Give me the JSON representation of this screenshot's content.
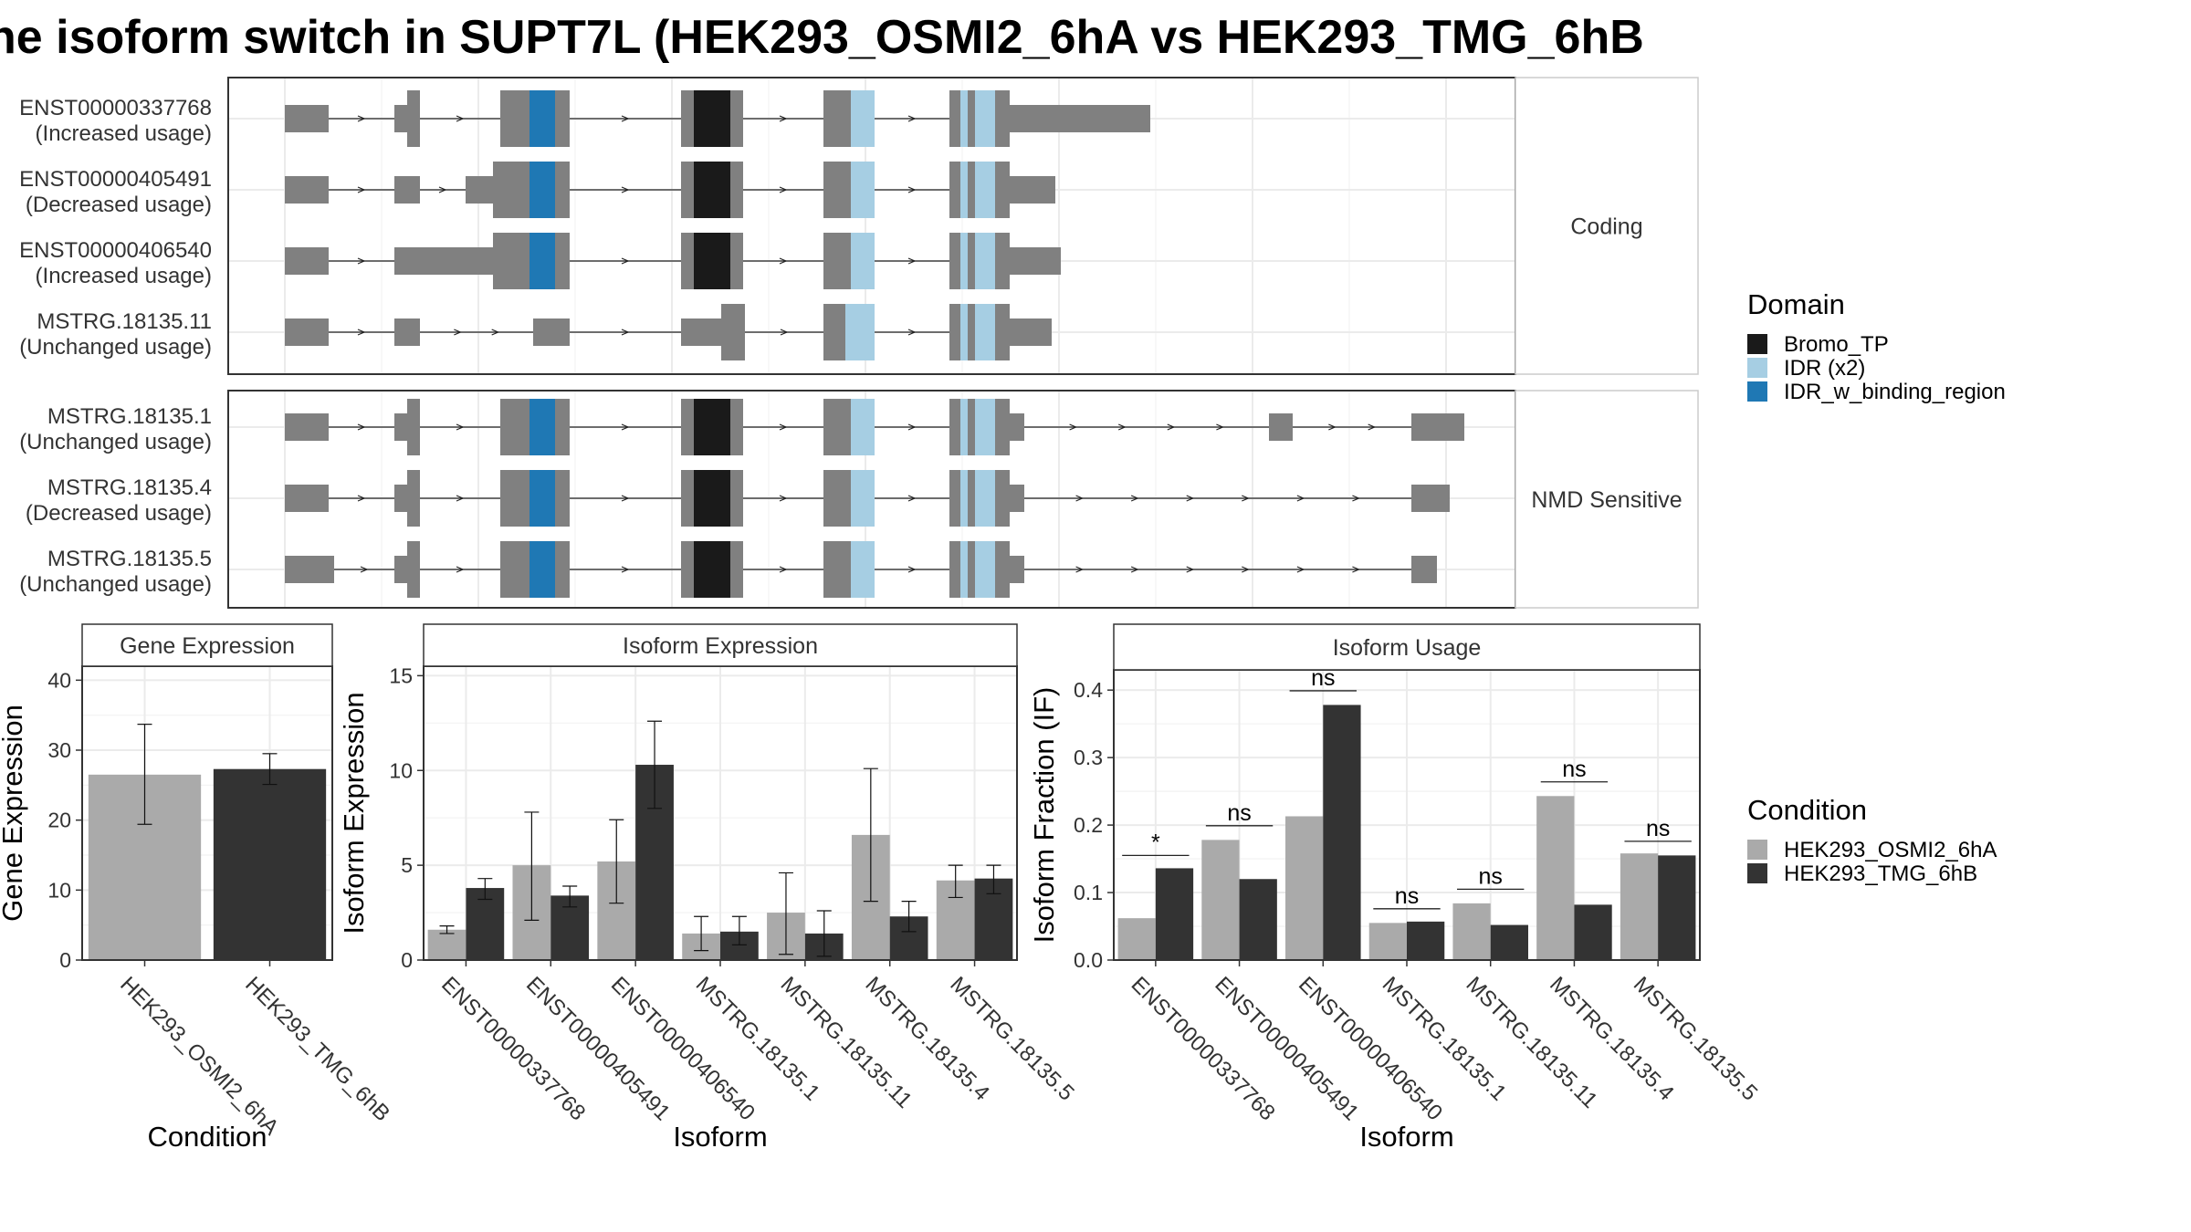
{
  "title": "he isoform switch in SUPT7L (HEK293_OSMI2_6hA vs HEK293_TMG_6hB",
  "colors": {
    "exon": "#808080",
    "bromo": "#1a1a1a",
    "idr": "#a6cee3",
    "idr_binding": "#1f78b4",
    "cond1": "#aaaaaa",
    "cond2": "#333333"
  },
  "transcript_plot": {
    "facets": [
      {
        "label": "Coding",
        "transcripts": [
          {
            "id": "ENST00000337768",
            "usage": "(Increased usage)"
          },
          {
            "id": "ENST00000405491",
            "usage": "(Decreased usage)"
          },
          {
            "id": "ENST00000406540",
            "usage": "(Increased usage)"
          },
          {
            "id": "MSTRG.18135.11",
            "usage": "(Unchanged usage)"
          }
        ]
      },
      {
        "label": "NMD Sensitive",
        "transcripts": [
          {
            "id": "MSTRG.18135.1",
            "usage": "(Unchanged usage)"
          },
          {
            "id": "MSTRG.18135.4",
            "usage": "(Decreased usage)"
          },
          {
            "id": "MSTRG.18135.5",
            "usage": "(Unchanged usage)"
          }
        ]
      }
    ]
  },
  "legend_domain": {
    "title": "Domain",
    "items": [
      {
        "label": "Bromo_TP",
        "color": "#1a1a1a"
      },
      {
        "label": "IDR (x2)",
        "color": "#a6cee3"
      },
      {
        "label": "IDR_w_binding_region",
        "color": "#1f78b4"
      }
    ]
  },
  "legend_condition": {
    "title": "Condition",
    "items": [
      {
        "label": "HEK293_OSMI2_6hA",
        "color": "#aaaaaa"
      },
      {
        "label": "HEK293_TMG_6hB",
        "color": "#333333"
      }
    ]
  },
  "chart_data": [
    {
      "type": "bar",
      "strip": "Gene Expression",
      "xlabel": "Condition",
      "ylabel": "Gene Expression",
      "ylim": [
        0,
        42
      ],
      "yticks": [
        0,
        10,
        20,
        30,
        40
      ],
      "categories": [
        "HEK293_OSMI2_6hA",
        "HEK293_TMG_6hB"
      ],
      "values": [
        26.5,
        27.3
      ],
      "errors": [
        [
          19.4,
          33.7
        ],
        [
          25.1,
          29.5
        ]
      ]
    },
    {
      "type": "bar",
      "strip": "Isoform Expression",
      "xlabel": "Isoform",
      "ylabel": "Isoform Expression",
      "ylim": [
        0,
        15.5
      ],
      "yticks": [
        0,
        5,
        10,
        15
      ],
      "categories": [
        "ENST00000337768",
        "ENST00000405491",
        "ENST00000406540",
        "MSTRG.18135.1",
        "MSTRG.18135.11",
        "MSTRG.18135.4",
        "MSTRG.18135.5"
      ],
      "series": [
        {
          "values": [
            1.6,
            5.0,
            5.2,
            1.4,
            2.5,
            6.6,
            4.2
          ],
          "errors": [
            [
              1.4,
              1.8
            ],
            [
              2.1,
              7.8
            ],
            [
              3.0,
              7.4
            ],
            [
              0.5,
              2.3
            ],
            [
              0.3,
              4.6
            ],
            [
              3.1,
              10.1
            ],
            [
              3.3,
              5.0
            ]
          ]
        },
        {
          "values": [
            3.8,
            3.4,
            10.3,
            1.5,
            1.4,
            2.3,
            4.3
          ],
          "errors": [
            [
              3.2,
              4.3
            ],
            [
              2.8,
              3.9
            ],
            [
              8.0,
              12.6
            ],
            [
              0.8,
              2.3
            ],
            [
              0.2,
              2.6
            ],
            [
              1.5,
              3.1
            ],
            [
              3.5,
              5.0
            ]
          ]
        }
      ]
    },
    {
      "type": "bar",
      "strip": "Isoform Usage",
      "xlabel": "Isoform",
      "ylabel": "Isoform Fraction (IF)",
      "ylim": [
        0,
        0.43
      ],
      "yticks": [
        0.0,
        0.1,
        0.2,
        0.3,
        0.4
      ],
      "ytick_labels": [
        "0.0",
        "0.1",
        "0.2",
        "0.3",
        "0.4"
      ],
      "categories": [
        "ENST00000337768",
        "ENST00000405491",
        "ENST00000406540",
        "MSTRG.18135.1",
        "MSTRG.18135.11",
        "MSTRG.18135.4",
        "MSTRG.18135.5"
      ],
      "series": [
        {
          "values": [
            0.062,
            0.178,
            0.213,
            0.055,
            0.084,
            0.243,
            0.158
          ]
        },
        {
          "values": [
            0.136,
            0.12,
            0.378,
            0.057,
            0.052,
            0.082,
            0.155
          ]
        }
      ],
      "significance": [
        "*",
        "ns",
        "ns",
        "ns",
        "ns",
        "ns",
        "ns"
      ],
      "significance_y": [
        0.155,
        0.199,
        0.399,
        0.076,
        0.105,
        0.264,
        0.176
      ]
    }
  ]
}
